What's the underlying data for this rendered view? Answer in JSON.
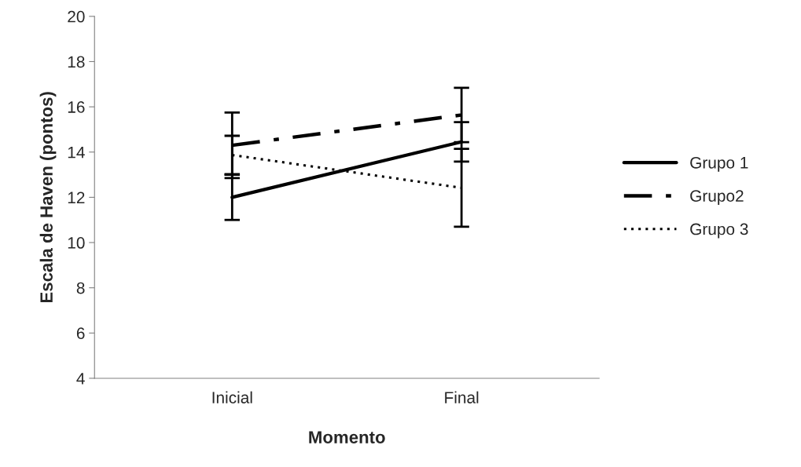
{
  "chart_data": {
    "type": "line",
    "xlabel": "Momento",
    "ylabel": "Escala de Haven (pontos)",
    "categories": [
      "Inicial",
      "Final"
    ],
    "series": [
      {
        "name": "Grupo 1",
        "color": "#000000",
        "line_style": "solid",
        "values": [
          12.0,
          14.45
        ],
        "errors": [
          1.0,
          0.87
        ]
      },
      {
        "name": "Grupo2",
        "color": "#000000",
        "line_style": "dashdot",
        "values": [
          14.3,
          15.64
        ],
        "errors": [
          1.45,
          1.2
        ]
      },
      {
        "name": "Grupo 3",
        "color": "#000000",
        "line_style": "dotted",
        "values": [
          13.87,
          12.42
        ],
        "errors": [
          0.85,
          1.72
        ]
      }
    ],
    "ylim": [
      4,
      20
    ],
    "yticks": [
      4,
      6,
      8,
      10,
      12,
      14,
      16,
      18,
      20
    ],
    "grid": false,
    "legend": "right",
    "marker": "none"
  }
}
